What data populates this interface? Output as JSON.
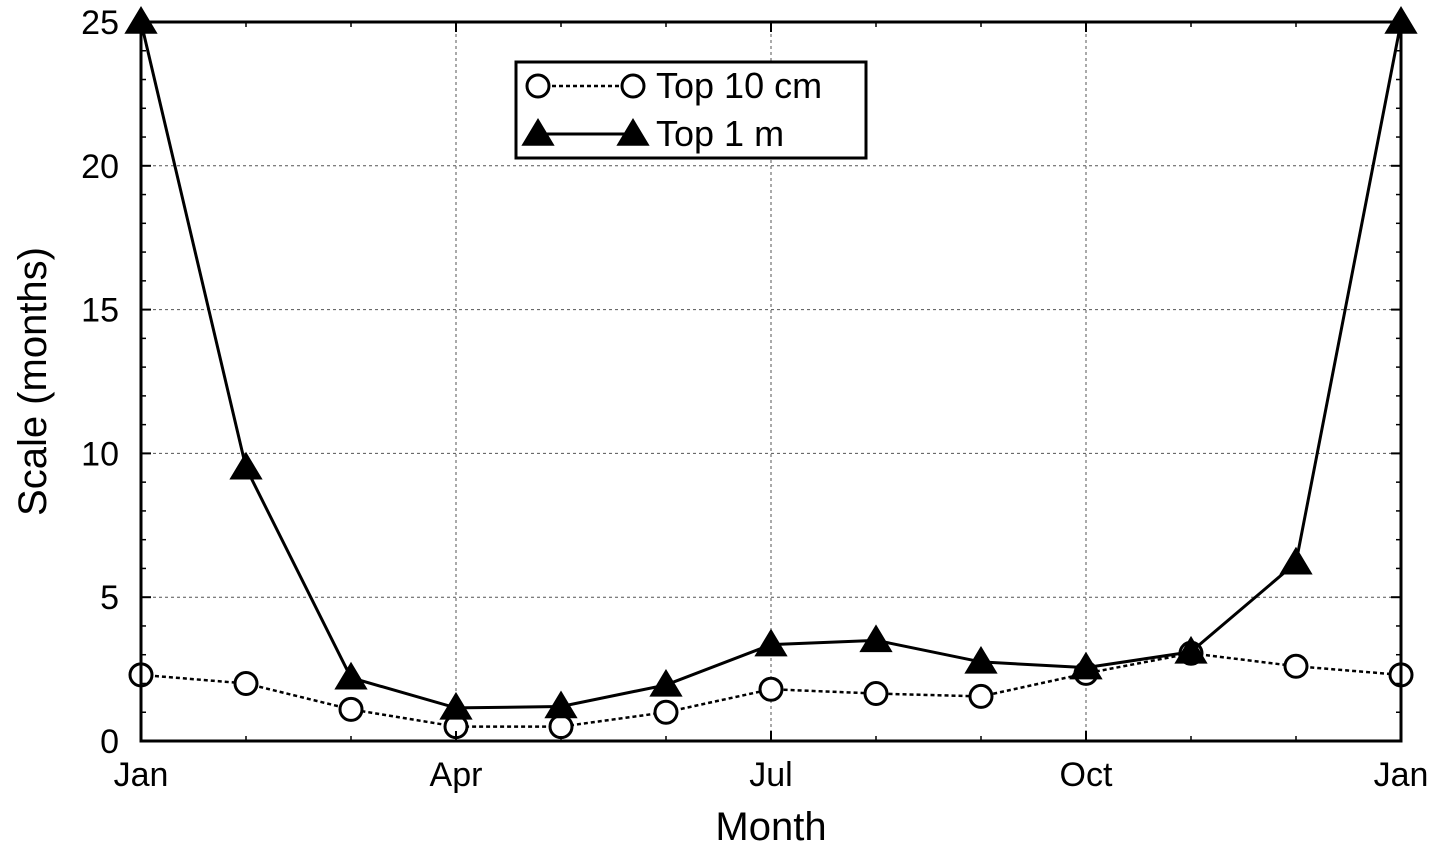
{
  "chart_data": {
    "type": "line",
    "title": "",
    "xlabel": "Month",
    "ylabel": "Scale (months)",
    "xlim": [
      0,
      12
    ],
    "ylim": [
      0,
      25
    ],
    "x_ticks": [
      {
        "value": 0,
        "label": "Jan"
      },
      {
        "value": 3,
        "label": "Apr"
      },
      {
        "value": 6,
        "label": "Jul"
      },
      {
        "value": 9,
        "label": "Oct"
      },
      {
        "value": 12,
        "label": "Jan"
      }
    ],
    "y_ticks": [
      {
        "value": 0,
        "label": "0"
      },
      {
        "value": 5,
        "label": "5"
      },
      {
        "value": 10,
        "label": "10"
      },
      {
        "value": 15,
        "label": "15"
      },
      {
        "value": 20,
        "label": "20"
      },
      {
        "value": 25,
        "label": "25"
      }
    ],
    "grid": true,
    "legend_position": "top-center",
    "series": [
      {
        "name": "Top 10 cm",
        "marker": "open-circle",
        "line_style": "dotted",
        "color": "#000000",
        "x": [
          0,
          1,
          2,
          3,
          4,
          5,
          6,
          7,
          8,
          9,
          10,
          11,
          12
        ],
        "values": [
          2.3,
          2.0,
          1.1,
          0.5,
          0.5,
          1.0,
          1.8,
          1.65,
          1.55,
          2.35,
          3.05,
          2.6,
          2.3
        ]
      },
      {
        "name": "Top 1 m",
        "marker": "filled-triangle",
        "line_style": "solid",
        "color": "#000000",
        "x": [
          0,
          1,
          2,
          3,
          4,
          5,
          6,
          7,
          8,
          9,
          10,
          11,
          12
        ],
        "values": [
          25.0,
          9.5,
          2.2,
          1.15,
          1.2,
          1.95,
          3.35,
          3.5,
          2.75,
          2.55,
          3.1,
          6.2,
          25.0
        ]
      }
    ]
  }
}
